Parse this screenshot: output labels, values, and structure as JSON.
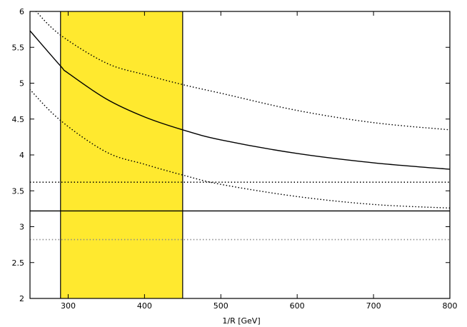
{
  "chart_data": {
    "type": "line",
    "title": "",
    "xlabel": "1/R [GeV]",
    "ylabel": "",
    "xlim": [
      250,
      800
    ],
    "ylim": [
      2,
      6
    ],
    "grid": false,
    "legend": "none",
    "x_ticks": [
      300,
      400,
      500,
      600,
      700,
      800
    ],
    "y_ticks": [
      2,
      2.5,
      3,
      3.5,
      4,
      4.5,
      5,
      5.5,
      6
    ],
    "shaded_region": {
      "x_range": [
        290,
        450
      ],
      "color": "#ffe92f"
    },
    "series": [
      {
        "style": "solid",
        "color": "#000000",
        "points": [
          [
            250,
            5.73
          ],
          [
            290,
            5.24
          ],
          [
            300,
            5.14
          ],
          [
            350,
            4.78
          ],
          [
            400,
            4.53
          ],
          [
            450,
            4.35
          ],
          [
            500,
            4.21
          ],
          [
            600,
            4.02
          ],
          [
            700,
            3.89
          ],
          [
            800,
            3.8
          ]
        ]
      },
      {
        "style": "dotted",
        "color": "#000000",
        "points": [
          [
            258,
            6.0
          ],
          [
            290,
            5.67
          ],
          [
            350,
            5.28
          ],
          [
            400,
            5.12
          ],
          [
            450,
            4.98
          ],
          [
            500,
            4.86
          ],
          [
            600,
            4.62
          ],
          [
            700,
            4.45
          ],
          [
            800,
            4.35
          ]
        ]
      },
      {
        "style": "dotted",
        "color": "#000000",
        "points": [
          [
            250,
            4.91
          ],
          [
            290,
            4.48
          ],
          [
            350,
            4.04
          ],
          [
            400,
            3.87
          ],
          [
            450,
            3.72
          ],
          [
            500,
            3.59
          ],
          [
            600,
            3.42
          ],
          [
            700,
            3.31
          ],
          [
            800,
            3.26
          ]
        ]
      }
    ],
    "reference_lines": [
      {
        "y": 3.62,
        "style": "dotted",
        "color": "#000000"
      },
      {
        "y": 3.22,
        "style": "solid",
        "color": "#000000"
      },
      {
        "y": 2.82,
        "style": "dotted",
        "color": "#888888"
      }
    ]
  }
}
